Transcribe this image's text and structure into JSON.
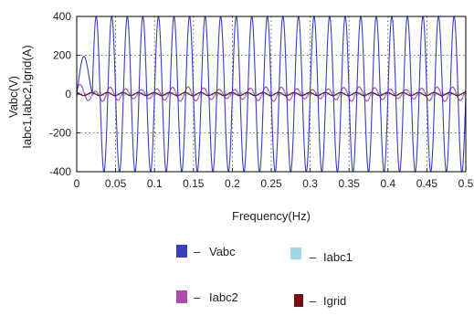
{
  "chart_data": {
    "type": "line",
    "xlabel": "Frequency(Hz)",
    "ylabel_lines": [
      "Vabc(V)",
      "Iabc1,Iabc2,Igrid(A)"
    ],
    "xlim": [
      0,
      0.5
    ],
    "ylim": [
      -400,
      400
    ],
    "x_ticks": [
      0,
      0.05,
      0.1,
      0.15,
      0.2,
      0.25,
      0.3,
      0.35,
      0.4,
      0.45,
      0.5
    ],
    "x_tick_labels": [
      "0",
      "0.05",
      "0.1",
      "0.15",
      "0.2",
      "0.25",
      "0.3",
      "0.35",
      "0.4",
      "0.45",
      "0.5"
    ],
    "y_ticks": [
      -400,
      -200,
      0,
      200,
      400
    ],
    "y_tick_labels": [
      "-400",
      "-200",
      "0",
      "200",
      "400"
    ],
    "grid": true,
    "legend_placement": "below",
    "series": [
      {
        "name": "Vabc",
        "color": "#3a3fbf",
        "amplitude": 400,
        "frequency_hz": 50,
        "x_start": 0.02,
        "startup_peak": 200
      },
      {
        "name": "Iabc1",
        "color": "#9fd8e6",
        "amplitude": 12,
        "frequency_hz": 50,
        "x_start": 0
      },
      {
        "name": "Iabc2",
        "color": "#b04ab0",
        "amplitude": 30,
        "frequency_hz": 50,
        "x_start": 0
      },
      {
        "name": "Igrid",
        "color": "#7a0a14",
        "amplitude": 8,
        "frequency_hz": 50,
        "x_start": 0
      }
    ]
  },
  "legend": {
    "items": [
      {
        "label": "Vabc",
        "color": "#3a3fbf"
      },
      {
        "label": "Iabc1",
        "color": "#9fd8e6"
      },
      {
        "label": "Iabc2",
        "color": "#b04ab0"
      },
      {
        "label": "Igrid",
        "color": "#7a0a14"
      }
    ],
    "dash": "–"
  }
}
